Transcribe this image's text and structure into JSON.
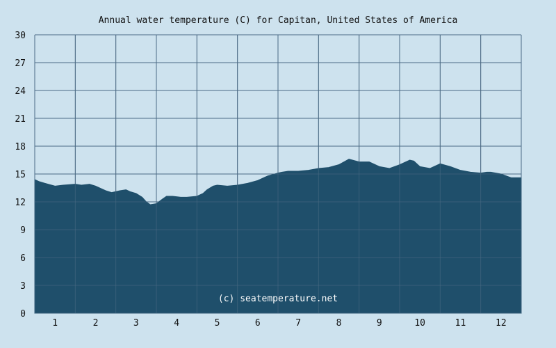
{
  "chart_data": {
    "type": "area",
    "title": "Annual water temperature (C) for Capitan, United States of America",
    "xlabel": "",
    "ylabel": "",
    "xlim": [
      0.5,
      12.5
    ],
    "ylim": [
      0,
      30
    ],
    "y_ticks": [
      "0",
      "3",
      "6",
      "9",
      "12",
      "15",
      "18",
      "21",
      "24",
      "27",
      "30"
    ],
    "x_ticks": [
      "1",
      "2",
      "3",
      "4",
      "5",
      "6",
      "7",
      "8",
      "9",
      "10",
      "11",
      "12"
    ],
    "grid": true,
    "legend": "none",
    "watermark": "(c) seatemperature.net",
    "colors": {
      "background": "#cde2ee",
      "plot_background": "#cde2ee",
      "area_fill": "#1f4f6b",
      "grid": "#4d6b85"
    },
    "series": [
      {
        "x": [
          0.5,
          0.6,
          0.75,
          1.0,
          1.2,
          1.5,
          1.65,
          1.85,
          2.0,
          2.15,
          2.25,
          2.4,
          2.6,
          2.75,
          2.85,
          3.0,
          3.15,
          3.25,
          3.35,
          3.5,
          3.65,
          3.75,
          3.9,
          4.1,
          4.25,
          4.5,
          4.65,
          4.75,
          4.9,
          5.0,
          5.25,
          5.5,
          5.75,
          6.0,
          6.25,
          6.5,
          6.6,
          6.75,
          7.0,
          7.25,
          7.5,
          7.75,
          8.0,
          8.25,
          8.5,
          8.75,
          9.0,
          9.25,
          9.5,
          9.75,
          9.85,
          10.0,
          10.25,
          10.5,
          10.75,
          11.0,
          11.25,
          11.5,
          11.65,
          11.75,
          12.0,
          12.25,
          12.5
        ],
        "y": [
          14.4,
          14.2,
          14.0,
          13.7,
          13.8,
          13.9,
          13.8,
          13.9,
          13.7,
          13.4,
          13.2,
          13.0,
          13.2,
          13.3,
          13.1,
          12.9,
          12.5,
          12.0,
          11.7,
          11.8,
          12.3,
          12.6,
          12.6,
          12.5,
          12.5,
          12.6,
          12.9,
          13.3,
          13.7,
          13.8,
          13.7,
          13.8,
          14.0,
          14.3,
          14.8,
          15.1,
          15.2,
          15.3,
          15.3,
          15.4,
          15.6,
          15.7,
          16.0,
          16.6,
          16.3,
          16.3,
          15.8,
          15.6,
          16.0,
          16.5,
          16.4,
          15.8,
          15.6,
          16.1,
          15.8,
          15.4,
          15.2,
          15.1,
          15.2,
          15.2,
          15.0,
          14.6,
          14.6
        ]
      }
    ]
  }
}
